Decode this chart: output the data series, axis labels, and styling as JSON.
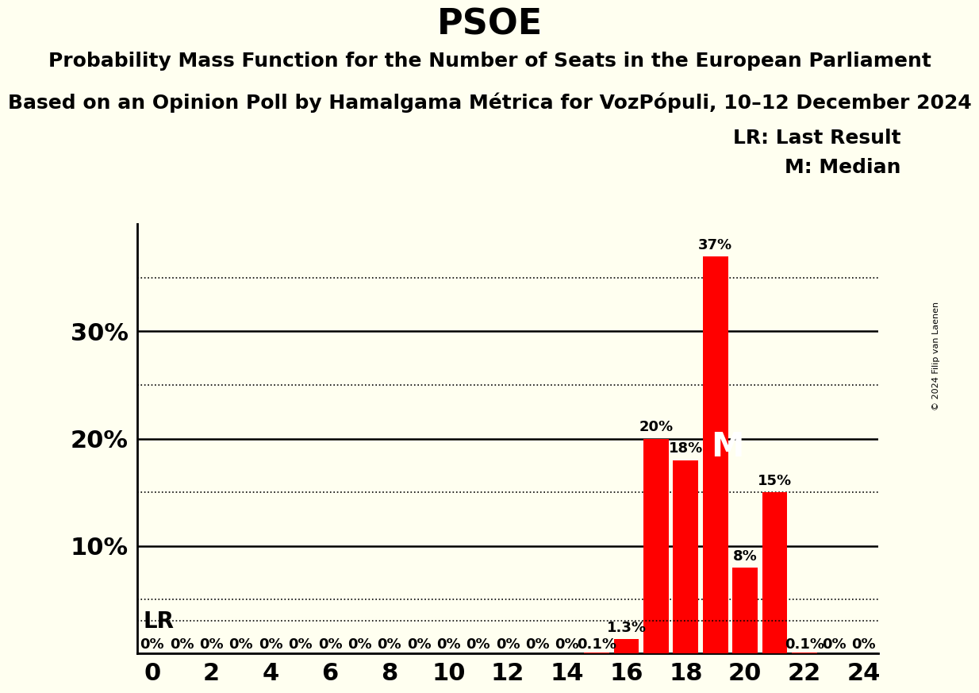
{
  "title": "PSOE",
  "subtitle1": "Probability Mass Function for the Number of Seats in the European Parliament",
  "subtitle2": "Based on an Opinion Poll by Hamalgama Métrica for VozPópuli, 10–12 December 2024",
  "copyright": "© 2024 Filip van Laenen",
  "legend_lr": "LR: Last Result",
  "legend_m": "M: Median",
  "bar_color": "#ff0000",
  "background_color": "#fffff0",
  "seats": [
    0,
    1,
    2,
    3,
    4,
    5,
    6,
    7,
    8,
    9,
    10,
    11,
    12,
    13,
    14,
    15,
    16,
    17,
    18,
    19,
    20,
    21,
    22,
    23,
    24
  ],
  "probabilities": [
    0.0,
    0.0,
    0.0,
    0.0,
    0.0,
    0.0,
    0.0,
    0.0,
    0.0,
    0.0,
    0.0,
    0.0,
    0.0,
    0.0,
    0.0,
    0.1,
    1.3,
    20.0,
    18.0,
    37.0,
    8.0,
    15.0,
    0.1,
    0.0,
    0.0
  ],
  "bar_labels": [
    "0%",
    "0%",
    "0%",
    "0%",
    "0%",
    "0%",
    "0%",
    "0%",
    "0%",
    "0%",
    "0%",
    "0%",
    "0%",
    "0%",
    "0%",
    "0.1%",
    "1.3%",
    "20%",
    "18%",
    "37%",
    "8%",
    "15%",
    "0.1%",
    "0%",
    "0%"
  ],
  "lr_value": 3.0,
  "median_seat": 19,
  "ylim": [
    0,
    40
  ],
  "yticks": [
    0,
    10,
    20,
    30
  ],
  "ytick_labels": [
    "",
    "10%",
    "20%",
    "30%"
  ],
  "dotted_lines": [
    5,
    15,
    25,
    35
  ],
  "xlim": [
    -0.5,
    24.5
  ],
  "xticks": [
    0,
    2,
    4,
    6,
    8,
    10,
    12,
    14,
    16,
    18,
    20,
    22,
    24
  ],
  "title_fontsize": 32,
  "subtitle_fontsize": 18,
  "bar_label_fontsize": 13,
  "legend_fontsize": 18,
  "lr_label_fontsize": 20,
  "ytick_fontsize": 22,
  "xtick_fontsize": 22
}
